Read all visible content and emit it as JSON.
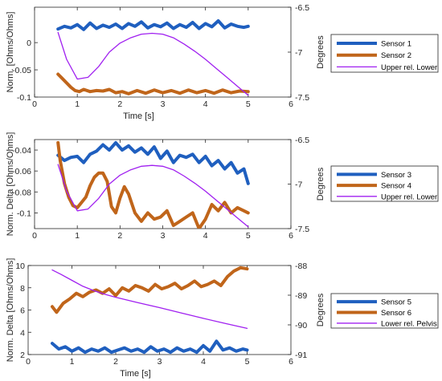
{
  "chart_data": [
    {
      "type": "line",
      "xlabel": "Time [s]",
      "ylabel_left": "Norm. [Ohms/Ohms]",
      "ylabel_right": "Degrees",
      "xlim": [
        0,
        6
      ],
      "ylim_left": [
        -0.1,
        0.065
      ],
      "ylim_right": [
        -7.5,
        -6.5
      ],
      "x_ticks": [
        "0",
        "1",
        "2",
        "3",
        "4",
        "5",
        "6"
      ],
      "y_ticks_left": [
        "0",
        "-0.05",
        "-0.1"
      ],
      "y_ticks_right": [
        "-6.5",
        "-7",
        "-7.5"
      ],
      "grid": false,
      "legend_position": "right",
      "legend": [
        "Sensor 1",
        "Sensor 2",
        "Upper rel. Lower"
      ],
      "series": [
        {
          "name": "Sensor 1",
          "axis": "left",
          "color": "#1f5fbf",
          "width": 4,
          "x": [
            0.55,
            0.7,
            0.85,
            1.0,
            1.15,
            1.3,
            1.45,
            1.6,
            1.75,
            1.9,
            2.05,
            2.2,
            2.35,
            2.5,
            2.65,
            2.8,
            2.95,
            3.1,
            3.25,
            3.4,
            3.55,
            3.7,
            3.85,
            4.0,
            4.15,
            4.3,
            4.45,
            4.6,
            4.75,
            4.9,
            5.0
          ],
          "y": [
            0.025,
            0.03,
            0.027,
            0.033,
            0.024,
            0.036,
            0.026,
            0.032,
            0.028,
            0.034,
            0.026,
            0.035,
            0.03,
            0.038,
            0.027,
            0.033,
            0.029,
            0.036,
            0.026,
            0.033,
            0.028,
            0.037,
            0.026,
            0.035,
            0.029,
            0.04,
            0.027,
            0.034,
            0.03,
            0.028,
            0.03
          ]
        },
        {
          "name": "Sensor 2",
          "axis": "left",
          "color": "#c0651a",
          "width": 4,
          "x": [
            0.55,
            0.65,
            0.75,
            0.85,
            0.95,
            1.05,
            1.15,
            1.3,
            1.45,
            1.6,
            1.75,
            1.9,
            2.05,
            2.2,
            2.4,
            2.6,
            2.8,
            3.0,
            3.2,
            3.4,
            3.6,
            3.8,
            4.0,
            4.2,
            4.4,
            4.6,
            4.8,
            5.0
          ],
          "y": [
            -0.058,
            -0.066,
            -0.074,
            -0.082,
            -0.088,
            -0.09,
            -0.086,
            -0.09,
            -0.088,
            -0.089,
            -0.086,
            -0.092,
            -0.09,
            -0.094,
            -0.088,
            -0.093,
            -0.087,
            -0.092,
            -0.088,
            -0.093,
            -0.087,
            -0.092,
            -0.088,
            -0.093,
            -0.087,
            -0.092,
            -0.089,
            -0.09
          ]
        },
        {
          "name": "Upper rel. Lower",
          "axis": "right",
          "color": "#a020f0",
          "width": 1.3,
          "x": [
            0.55,
            0.75,
            1.0,
            1.25,
            1.5,
            1.75,
            2.0,
            2.25,
            2.5,
            2.75,
            3.0,
            3.25,
            3.5,
            3.75,
            4.0,
            4.25,
            4.5,
            4.75,
            5.0
          ],
          "y": [
            -6.78,
            -7.08,
            -7.3,
            -7.28,
            -7.16,
            -7.0,
            -6.9,
            -6.84,
            -6.8,
            -6.79,
            -6.8,
            -6.84,
            -6.91,
            -6.99,
            -7.08,
            -7.18,
            -7.28,
            -7.38,
            -7.48
          ]
        }
      ]
    },
    {
      "type": "line",
      "xlabel": "",
      "ylabel_left": "Norm. Delta [Ohms/Ohms]",
      "ylabel_right": "Degrees",
      "xlim": [
        0,
        6
      ],
      "ylim_left": [
        -0.115,
        -0.03
      ],
      "ylim_right": [
        -7.5,
        -6.5
      ],
      "x_ticks": [
        "0",
        "1",
        "2",
        "3",
        "4",
        "5",
        "6"
      ],
      "y_ticks_left": [
        "-0.04",
        "-0.06",
        "-0.08",
        "-0.1"
      ],
      "y_ticks_right": [
        "-6.5",
        "-7",
        "-7.5"
      ],
      "grid": false,
      "legend_position": "right",
      "legend": [
        "Sensor 3",
        "Sensor 4",
        "Upper rel. Lower"
      ],
      "series": [
        {
          "name": "Sensor 3",
          "axis": "left",
          "color": "#1f5fbf",
          "width": 4,
          "x": [
            0.55,
            0.7,
            0.85,
            1.0,
            1.15,
            1.3,
            1.45,
            1.6,
            1.75,
            1.9,
            2.05,
            2.2,
            2.35,
            2.5,
            2.65,
            2.8,
            2.95,
            3.1,
            3.25,
            3.4,
            3.55,
            3.7,
            3.85,
            4.0,
            4.15,
            4.3,
            4.45,
            4.6,
            4.75,
            4.9,
            5.0
          ],
          "y": [
            -0.045,
            -0.05,
            -0.047,
            -0.046,
            -0.052,
            -0.044,
            -0.041,
            -0.035,
            -0.04,
            -0.033,
            -0.04,
            -0.036,
            -0.042,
            -0.038,
            -0.044,
            -0.037,
            -0.048,
            -0.041,
            -0.052,
            -0.045,
            -0.047,
            -0.044,
            -0.052,
            -0.046,
            -0.055,
            -0.05,
            -0.058,
            -0.052,
            -0.062,
            -0.058,
            -0.072
          ]
        },
        {
          "name": "Sensor 4",
          "axis": "left",
          "color": "#c0651a",
          "width": 4,
          "x": [
            0.55,
            0.6,
            0.7,
            0.8,
            0.9,
            1.0,
            1.1,
            1.2,
            1.3,
            1.4,
            1.5,
            1.6,
            1.7,
            1.8,
            1.9,
            2.0,
            2.1,
            2.2,
            2.35,
            2.5,
            2.65,
            2.8,
            2.95,
            3.1,
            3.25,
            3.4,
            3.55,
            3.7,
            3.85,
            4.0,
            4.15,
            4.3,
            4.45,
            4.6,
            4.75,
            4.9,
            5.0
          ],
          "y": [
            -0.033,
            -0.05,
            -0.072,
            -0.085,
            -0.093,
            -0.095,
            -0.09,
            -0.085,
            -0.074,
            -0.066,
            -0.062,
            -0.062,
            -0.07,
            -0.094,
            -0.1,
            -0.086,
            -0.075,
            -0.082,
            -0.1,
            -0.108,
            -0.1,
            -0.106,
            -0.104,
            -0.098,
            -0.112,
            -0.108,
            -0.104,
            -0.1,
            -0.115,
            -0.106,
            -0.092,
            -0.098,
            -0.09,
            -0.1,
            -0.095,
            -0.098,
            -0.1
          ]
        },
        {
          "name": "Upper rel. Lower",
          "axis": "right",
          "color": "#a020f0",
          "width": 1.3,
          "x": [
            0.55,
            0.75,
            1.0,
            1.25,
            1.5,
            1.75,
            2.0,
            2.25,
            2.5,
            2.75,
            3.0,
            3.25,
            3.5,
            3.75,
            4.0,
            4.25,
            4.5,
            4.75,
            5.0
          ],
          "y": [
            -6.78,
            -7.08,
            -7.3,
            -7.28,
            -7.16,
            -7.0,
            -6.9,
            -6.84,
            -6.8,
            -6.79,
            -6.8,
            -6.84,
            -6.91,
            -6.99,
            -7.08,
            -7.18,
            -7.28,
            -7.38,
            -7.48
          ]
        }
      ]
    },
    {
      "type": "line",
      "xlabel": "Time [s]",
      "ylabel_left": "Norm. Delta [Ohms/Ohms]",
      "ylabel_right": "Degrees",
      "xlim": [
        0,
        6
      ],
      "ylim_left": [
        2,
        10
      ],
      "ylim_right": [
        -91,
        -88
      ],
      "x_ticks": [
        "0",
        "1",
        "2",
        "3",
        "4",
        "5",
        "6"
      ],
      "y_ticks_left": [
        "10",
        "8",
        "6",
        "4",
        "2"
      ],
      "y_ticks_right": [
        "-88",
        "-89",
        "-90",
        "-91"
      ],
      "grid": false,
      "legend_position": "right",
      "legend": [
        "Sensor 5",
        "Sensor 6",
        "Lower rel. Pelvis"
      ],
      "series": [
        {
          "name": "Sensor 5",
          "axis": "left",
          "color": "#1f5fbf",
          "width": 4,
          "x": [
            0.55,
            0.7,
            0.85,
            1.0,
            1.15,
            1.3,
            1.45,
            1.6,
            1.75,
            1.9,
            2.05,
            2.2,
            2.35,
            2.5,
            2.65,
            2.8,
            2.95,
            3.1,
            3.25,
            3.4,
            3.55,
            3.7,
            3.85,
            4.0,
            4.15,
            4.3,
            4.45,
            4.6,
            4.75,
            4.9,
            5.0
          ],
          "y": [
            3.0,
            2.5,
            2.7,
            2.3,
            2.6,
            2.2,
            2.5,
            2.3,
            2.6,
            2.2,
            2.4,
            2.6,
            2.3,
            2.5,
            2.2,
            2.7,
            2.3,
            2.5,
            2.2,
            2.6,
            2.3,
            2.5,
            2.2,
            2.8,
            2.3,
            3.2,
            2.4,
            2.6,
            2.3,
            2.5,
            2.4
          ]
        },
        {
          "name": "Sensor 6",
          "axis": "left",
          "color": "#c0651a",
          "width": 4,
          "x": [
            0.55,
            0.65,
            0.8,
            0.95,
            1.1,
            1.25,
            1.4,
            1.55,
            1.7,
            1.85,
            2.0,
            2.15,
            2.3,
            2.45,
            2.6,
            2.75,
            2.9,
            3.05,
            3.2,
            3.35,
            3.5,
            3.65,
            3.8,
            3.95,
            4.1,
            4.25,
            4.4,
            4.55,
            4.7,
            4.85,
            5.0
          ],
          "y": [
            6.3,
            5.8,
            6.6,
            7.0,
            7.5,
            7.2,
            7.6,
            7.8,
            7.5,
            7.9,
            7.3,
            8.0,
            7.7,
            8.2,
            8.0,
            7.7,
            8.3,
            7.9,
            8.1,
            8.4,
            7.9,
            8.2,
            8.6,
            8.1,
            8.3,
            8.6,
            8.2,
            9.0,
            9.5,
            9.8,
            9.7
          ]
        },
        {
          "name": "Lower rel. Pelvis",
          "axis": "right",
          "color": "#a020f0",
          "width": 1.3,
          "x": [
            0.55,
            0.75,
            1.0,
            1.25,
            1.5,
            1.75,
            2.0,
            2.5,
            3.0,
            3.5,
            4.0,
            4.5,
            5.0
          ],
          "y": [
            -88.15,
            -88.3,
            -88.5,
            -88.7,
            -88.85,
            -88.97,
            -89.07,
            -89.25,
            -89.42,
            -89.6,
            -89.78,
            -89.95,
            -90.12
          ]
        }
      ]
    }
  ]
}
